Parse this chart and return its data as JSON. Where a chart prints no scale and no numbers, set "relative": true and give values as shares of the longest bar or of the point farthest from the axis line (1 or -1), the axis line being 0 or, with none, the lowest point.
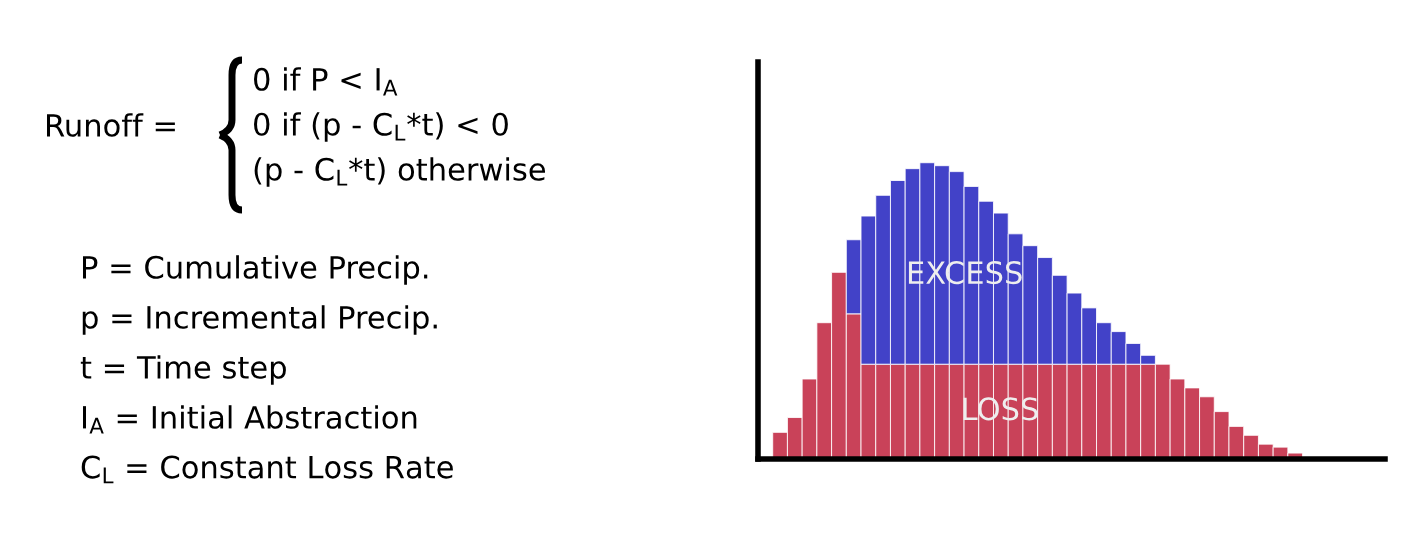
{
  "chart_data": {
    "type": "bar",
    "stacked": true,
    "relative": true,
    "tick_labels": false,
    "categories": [
      null,
      null,
      null,
      null,
      null,
      null,
      null,
      null,
      null,
      null,
      null,
      null,
      null,
      null,
      null,
      null,
      null,
      null,
      null,
      null,
      null,
      null,
      null,
      null,
      null,
      null,
      null,
      null,
      null,
      null,
      null,
      null,
      null,
      null,
      null,
      null
    ],
    "series": [
      {
        "name": "LOSS",
        "color": "#c94259",
        "values": [
          0.09,
          0.14,
          0.27,
          0.46,
          0.63,
          0.49,
          0.32,
          0.32,
          0.32,
          0.32,
          0.32,
          0.32,
          0.32,
          0.32,
          0.32,
          0.32,
          0.32,
          0.32,
          0.32,
          0.32,
          0.32,
          0.32,
          0.32,
          0.32,
          0.32,
          0.32,
          0.32,
          0.27,
          0.24,
          0.21,
          0.16,
          0.11,
          0.08,
          0.05,
          0.04,
          0.02
        ]
      },
      {
        "name": "EXCESS",
        "color": "#4242c8",
        "values": [
          0,
          0,
          0,
          0,
          0,
          0.25,
          0.5,
          0.57,
          0.62,
          0.66,
          0.68,
          0.67,
          0.65,
          0.6,
          0.55,
          0.51,
          0.44,
          0.4,
          0.36,
          0.3,
          0.24,
          0.19,
          0.14,
          0.11,
          0.07,
          0.03,
          0,
          0,
          0,
          0,
          0,
          0,
          0,
          0,
          0,
          0
        ]
      }
    ],
    "annotations": [
      "Runoff =",
      "0 if P < I$_{A}$",
      "0 if (p - C$_{L}$*t) < 0",
      "(p - C$_{L}$*t) otherwise",
      "P = Cumulative Precip.",
      "p = Incremental Precip.",
      "t = Time step",
      "I$_{A}$ = Initial Abstraction",
      "C$_{L}$ = Constant Loss Rate"
    ]
  }
}
